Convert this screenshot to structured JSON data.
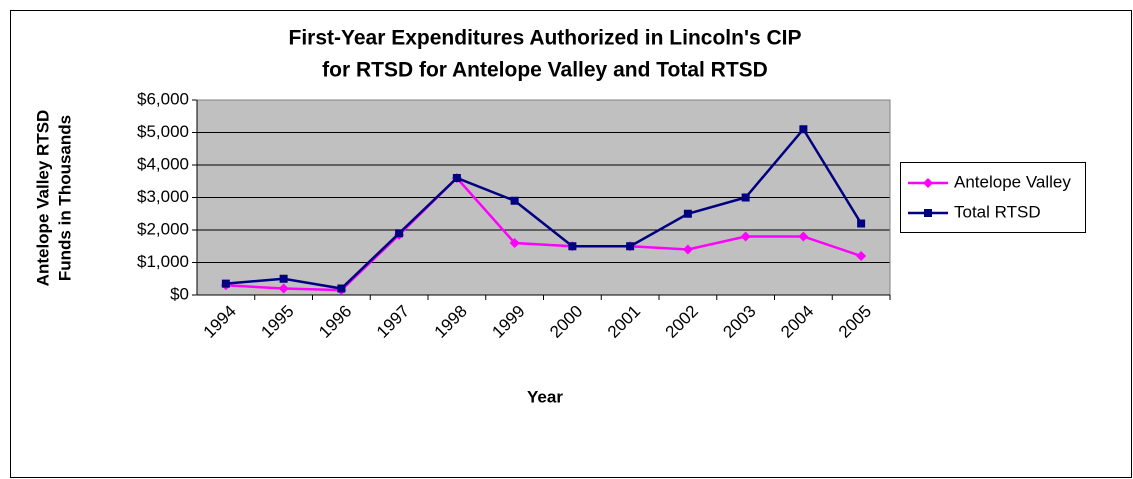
{
  "chart_data": {
    "type": "line",
    "title": [
      "First-Year Expenditures Authorized in Lincoln's CIP",
      "for RTSD for Antelope Valley and Total RTSD"
    ],
    "x_label": "Year",
    "y_label": [
      "Antelope Valley RTSD",
      "Funds in Thousands"
    ],
    "categories": [
      "1994",
      "1995",
      "1996",
      "1997",
      "1998",
      "1999",
      "2000",
      "2001",
      "2002",
      "2003",
      "2004",
      "2005"
    ],
    "series": [
      {
        "name": "Antelope Valley",
        "color": "#ff00ff",
        "marker": "diamond",
        "values": [
          300,
          200,
          150,
          1850,
          3600,
          1600,
          1500,
          1500,
          1400,
          1800,
          1800,
          1200
        ]
      },
      {
        "name": "Total RTSD",
        "color": "#000080",
        "marker": "square",
        "values": [
          350,
          500,
          200,
          1900,
          3600,
          2900,
          1500,
          1500,
          2500,
          3000,
          5100,
          2200
        ]
      }
    ],
    "ylim": [
      0,
      6000
    ],
    "yticks": [
      {
        "value": 0,
        "label": "$0"
      },
      {
        "value": 1000,
        "label": "$1,000"
      },
      {
        "value": 2000,
        "label": "$2,000"
      },
      {
        "value": 3000,
        "label": "$3,000"
      },
      {
        "value": 4000,
        "label": "$4,000"
      },
      {
        "value": 5000,
        "label": "$5,000"
      },
      {
        "value": 6000,
        "label": "$6,000"
      }
    ],
    "grid": true,
    "legend": "right",
    "plot_background": "#c0c0c0"
  }
}
